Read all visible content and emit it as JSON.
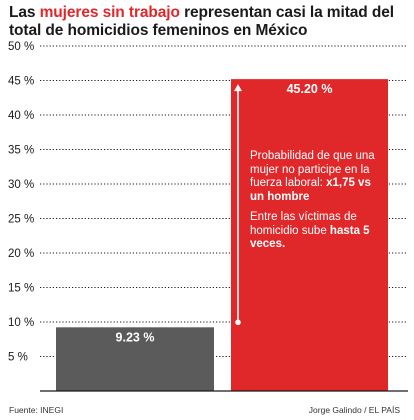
{
  "title": {
    "before": "Las ",
    "highlight": "mujeres sin trabajo",
    "after": " representan casi la mitad del total de homicidios femeninos en México"
  },
  "colors": {
    "accent": "#e0272a",
    "dark_bar": "#5b5b5b",
    "grid": "#1a1a1a"
  },
  "annotations": {
    "block1_text": "Probabilidad de que una mujer no participe en la fuerza laboral:",
    "block1_bold": "x1,75 vs un hombre",
    "block2_text": "Entre las víctimas de homicidio sube",
    "block2_bold": "hasta 5 veces."
  },
  "footer": {
    "source": "Fuente: INEGI",
    "credit": "Jorge Galindo / EL PAÍS"
  },
  "chart_data": {
    "type": "bar",
    "categories": [
      "",
      ""
    ],
    "values": [
      9.23,
      45.2
    ],
    "value_labels": [
      "9.23 %",
      "45.20 %"
    ],
    "ylim": [
      0,
      50
    ],
    "yticks": [
      5,
      10,
      15,
      20,
      25,
      30,
      35,
      40,
      45,
      50
    ],
    "ytick_labels": [
      "5 %",
      "10 %",
      "15 %",
      "20 %",
      "25 %",
      "30 %",
      "35 %",
      "40 %",
      "45 %",
      "50 %"
    ],
    "grid": true,
    "bar_colors": [
      "#5b5b5b",
      "#e0272a"
    ]
  }
}
